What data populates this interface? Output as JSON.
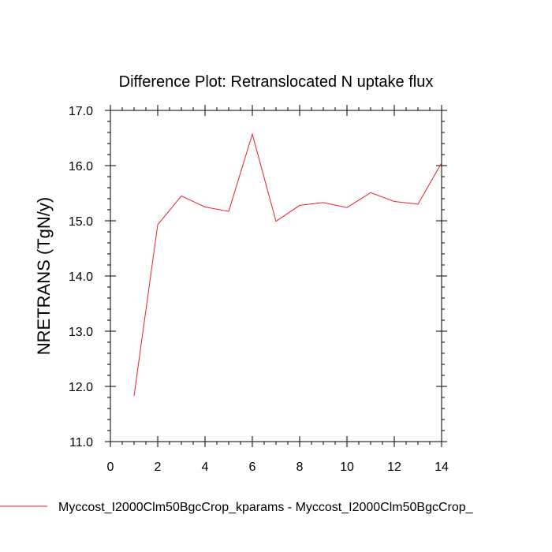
{
  "chart_data": {
    "type": "line",
    "title": "Difference Plot: Retranslocated N uptake flux",
    "xlabel": "",
    "ylabel": "NRETRANS  (TgN/y)",
    "xlim": [
      0,
      14
    ],
    "ylim": [
      11.0,
      17.0
    ],
    "x_ticks": [
      0,
      2,
      4,
      6,
      8,
      10,
      12,
      14
    ],
    "x_tick_labels": [
      "0",
      "2",
      "4",
      "6",
      "8",
      "10",
      "12",
      "14"
    ],
    "y_ticks": [
      11.0,
      12.0,
      13.0,
      14.0,
      15.0,
      16.0,
      17.0
    ],
    "y_tick_labels": [
      "11.0",
      "12.0",
      "13.0",
      "14.0",
      "15.0",
      "16.0",
      "17.0"
    ],
    "grid": false,
    "legend_position": "bottom",
    "series": [
      {
        "name": "Myccost_I2000Clm50BgcCrop_kparams - Myccost_I2000Clm50BgcCrop_",
        "color": "#e8202a",
        "x": [
          1,
          2,
          3,
          4,
          5,
          6,
          7,
          8,
          9,
          10,
          11,
          12,
          13,
          14
        ],
        "y": [
          11.83,
          14.93,
          15.45,
          15.25,
          15.17,
          16.57,
          14.99,
          15.28,
          15.33,
          15.24,
          15.51,
          15.35,
          15.3,
          16.05
        ]
      }
    ]
  }
}
